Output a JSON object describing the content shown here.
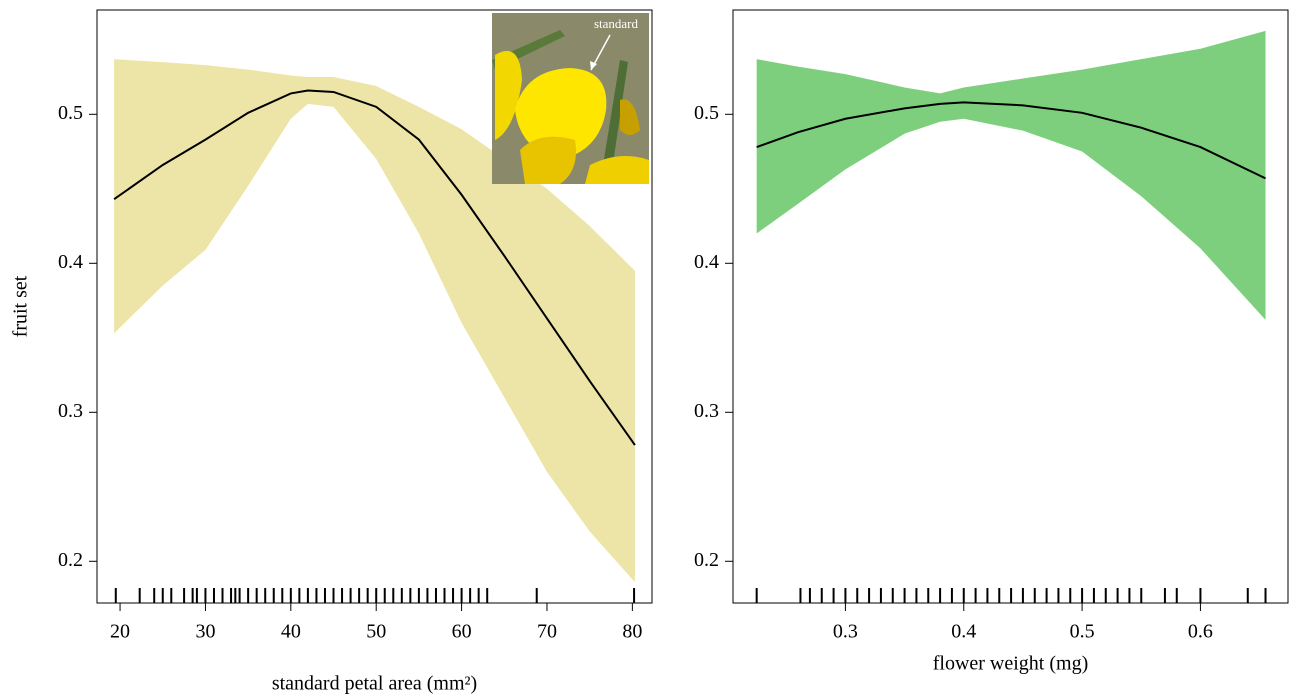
{
  "chart_data": [
    {
      "type": "line",
      "y_label": "fruit set",
      "x_label": "standard petal area (mm²)",
      "inset_label": "standard",
      "x": [
        19.3,
        25,
        30,
        35,
        40,
        42,
        45,
        50,
        55,
        60,
        65,
        70,
        75,
        80.3
      ],
      "values": [
        0.443,
        0.466,
        0.483,
        0.501,
        0.514,
        0.516,
        0.515,
        0.505,
        0.483,
        0.446,
        0.405,
        0.363,
        0.321,
        0.278
      ],
      "lower": [
        0.353,
        0.385,
        0.409,
        0.452,
        0.497,
        0.507,
        0.505,
        0.47,
        0.42,
        0.36,
        0.31,
        0.26,
        0.22,
        0.186
      ],
      "upper": [
        0.537,
        0.535,
        0.533,
        0.53,
        0.526,
        0.525,
        0.525,
        0.519,
        0.505,
        0.49,
        0.47,
        0.45,
        0.425,
        0.395
      ],
      "line_color": "#000000",
      "band_color": "#ede5a8",
      "rug": [
        19.5,
        22.3,
        24,
        25,
        26,
        27.5,
        28.5,
        29,
        30,
        31,
        32,
        33,
        33.5,
        34,
        35,
        36,
        37,
        38,
        39,
        40,
        41,
        42,
        43,
        44,
        45,
        46,
        47,
        48,
        49,
        50,
        51,
        52,
        53,
        54,
        55,
        56,
        57,
        58,
        59,
        60,
        61,
        62,
        63,
        68.8,
        80.2
      ],
      "xlim": [
        17.3,
        82.3
      ],
      "xticks": [
        20,
        30,
        40,
        50,
        60,
        70,
        80
      ],
      "ylim": [
        0.172,
        0.57
      ],
      "yticks": [
        0.2,
        0.3,
        0.4,
        0.5
      ]
    },
    {
      "type": "line",
      "x_label": "flower weight (mg)",
      "x": [
        0.225,
        0.26,
        0.3,
        0.35,
        0.38,
        0.4,
        0.45,
        0.5,
        0.55,
        0.6,
        0.655
      ],
      "values": [
        0.478,
        0.488,
        0.497,
        0.504,
        0.507,
        0.508,
        0.506,
        0.501,
        0.491,
        0.478,
        0.457
      ],
      "lower": [
        0.42,
        0.44,
        0.463,
        0.487,
        0.495,
        0.497,
        0.489,
        0.475,
        0.445,
        0.41,
        0.362
      ],
      "upper": [
        0.537,
        0.532,
        0.527,
        0.518,
        0.514,
        0.518,
        0.524,
        0.53,
        0.537,
        0.544,
        0.556
      ],
      "line_color": "#000000",
      "band_color": "#7dcf7d",
      "rug": [
        0.225,
        0.262,
        0.27,
        0.28,
        0.29,
        0.3,
        0.31,
        0.32,
        0.33,
        0.34,
        0.35,
        0.36,
        0.37,
        0.38,
        0.39,
        0.4,
        0.41,
        0.42,
        0.43,
        0.44,
        0.45,
        0.46,
        0.47,
        0.48,
        0.49,
        0.5,
        0.51,
        0.52,
        0.53,
        0.54,
        0.55,
        0.57,
        0.58,
        0.6,
        0.64,
        0.655
      ],
      "xlim": [
        0.205,
        0.674
      ],
      "xticks": [
        0.3,
        0.4,
        0.5,
        0.6
      ],
      "ylim": [
        0.172,
        0.57
      ],
      "yticks": [
        0.2,
        0.3,
        0.4,
        0.5
      ]
    }
  ]
}
